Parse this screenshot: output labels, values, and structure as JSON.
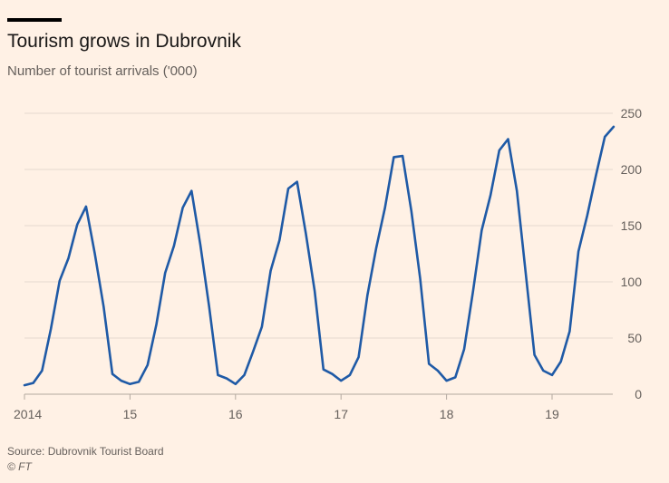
{
  "chart_data": {
    "type": "line",
    "title": "Tourism grows in Dubrovnik",
    "subtitle": "Number of tourist arrivals ('000)",
    "source": "Source: Dubrovnik Tourist Board",
    "copyright": "© FT",
    "ylim": [
      0,
      250
    ],
    "y_ticks": [
      0,
      50,
      100,
      150,
      200,
      250
    ],
    "y_tick_labels": [
      "0",
      "50",
      "100",
      "150",
      "200",
      "250"
    ],
    "x_ticks": [
      2014,
      2015,
      2016,
      2017,
      2018,
      2019
    ],
    "x_tick_labels": [
      "2014",
      "15",
      "16",
      "17",
      "18",
      "19"
    ],
    "xlim": [
      2014,
      2019.58
    ],
    "line_color": "#1f5aa6",
    "series": [
      {
        "name": "Tourist arrivals",
        "start_year": 2014,
        "months_per_year": 12,
        "values": [
          8,
          10,
          21,
          58,
          101,
          121,
          151,
          167,
          125,
          78,
          18,
          12,
          9,
          11,
          26,
          62,
          108,
          132,
          166,
          181,
          133,
          78,
          17,
          14,
          9,
          17,
          38,
          60,
          110,
          137,
          183,
          189,
          143,
          92,
          22,
          18,
          12,
          17,
          33,
          88,
          130,
          166,
          211,
          212,
          163,
          103,
          27,
          21,
          12,
          15,
          40,
          91,
          146,
          177,
          217,
          227,
          181,
          108,
          35,
          21,
          17,
          29,
          56,
          127,
          159,
          195,
          229,
          238
        ]
      }
    ]
  }
}
